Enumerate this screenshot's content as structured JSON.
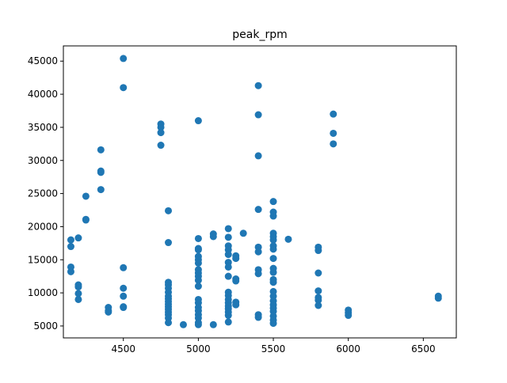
{
  "chart_data": {
    "type": "scatter",
    "title": "peak_rpm",
    "xlabel": "",
    "ylabel": "",
    "xlim": [
      4100,
      6720
    ],
    "ylim": [
      3200,
      47300
    ],
    "x_ticks": [
      4500,
      5000,
      5500,
      6000,
      6500
    ],
    "y_ticks": [
      5000,
      10000,
      15000,
      20000,
      25000,
      30000,
      35000,
      40000,
      45000
    ],
    "grid": false,
    "marker_color": "#1f77b4",
    "points": [
      [
        4150,
        17000
      ],
      [
        4150,
        18000
      ],
      [
        4150,
        13200
      ],
      [
        4150,
        13900
      ],
      [
        4200,
        18300
      ],
      [
        4200,
        11200
      ],
      [
        4200,
        10900
      ],
      [
        4200,
        9900
      ],
      [
        4200,
        9000
      ],
      [
        4250,
        24600
      ],
      [
        4250,
        21000
      ],
      [
        4250,
        21100
      ],
      [
        4350,
        31600
      ],
      [
        4350,
        28200
      ],
      [
        4350,
        28400
      ],
      [
        4350,
        25600
      ],
      [
        4400,
        7800
      ],
      [
        4400,
        7300
      ],
      [
        4400,
        7100
      ],
      [
        4500,
        45400
      ],
      [
        4500,
        41000
      ],
      [
        4500,
        13800
      ],
      [
        4500,
        10700
      ],
      [
        4500,
        9500
      ],
      [
        4500,
        7900
      ],
      [
        4500,
        7800
      ],
      [
        4750,
        35500
      ],
      [
        4750,
        35000
      ],
      [
        4750,
        34200
      ],
      [
        4750,
        32300
      ],
      [
        4800,
        22400
      ],
      [
        4800,
        17600
      ],
      [
        4800,
        11600
      ],
      [
        4800,
        11200
      ],
      [
        4800,
        10700
      ],
      [
        4800,
        10100
      ],
      [
        4800,
        9500
      ],
      [
        4800,
        9100
      ],
      [
        4800,
        8700
      ],
      [
        4800,
        8300
      ],
      [
        4800,
        7900
      ],
      [
        4800,
        7500
      ],
      [
        4800,
        7100
      ],
      [
        4800,
        6700
      ],
      [
        4800,
        6200
      ],
      [
        4800,
        5500
      ],
      [
        4900,
        5200
      ],
      [
        5000,
        36000
      ],
      [
        5000,
        18200
      ],
      [
        5000,
        16700
      ],
      [
        5000,
        16500
      ],
      [
        5000,
        15500
      ],
      [
        5000,
        15000
      ],
      [
        5000,
        14500
      ],
      [
        5000,
        13500
      ],
      [
        5000,
        13000
      ],
      [
        5000,
        12500
      ],
      [
        5000,
        11900
      ],
      [
        5000,
        11000
      ],
      [
        5000,
        9000
      ],
      [
        5000,
        8500
      ],
      [
        5000,
        7800
      ],
      [
        5000,
        7300
      ],
      [
        5000,
        6700
      ],
      [
        5000,
        6200
      ],
      [
        5000,
        5500
      ],
      [
        5000,
        5200
      ],
      [
        5100,
        18900
      ],
      [
        5100,
        18500
      ],
      [
        5100,
        5200
      ],
      [
        5200,
        19700
      ],
      [
        5200,
        18400
      ],
      [
        5200,
        17100
      ],
      [
        5200,
        16500
      ],
      [
        5200,
        15800
      ],
      [
        5200,
        14600
      ],
      [
        5200,
        13900
      ],
      [
        5200,
        12500
      ],
      [
        5200,
        10100
      ],
      [
        5200,
        9600
      ],
      [
        5200,
        9000
      ],
      [
        5200,
        8500
      ],
      [
        5200,
        8000
      ],
      [
        5200,
        7600
      ],
      [
        5200,
        7100
      ],
      [
        5200,
        6600
      ],
      [
        5200,
        5600
      ],
      [
        5250,
        15600
      ],
      [
        5250,
        15200
      ],
      [
        5250,
        12100
      ],
      [
        5250,
        11800
      ],
      [
        5250,
        8600
      ],
      [
        5250,
        8200
      ],
      [
        5300,
        19000
      ],
      [
        5400,
        41300
      ],
      [
        5400,
        36900
      ],
      [
        5400,
        30700
      ],
      [
        5400,
        22600
      ],
      [
        5400,
        16900
      ],
      [
        5400,
        16200
      ],
      [
        5400,
        13500
      ],
      [
        5400,
        12900
      ],
      [
        5400,
        6700
      ],
      [
        5400,
        6300
      ],
      [
        5500,
        23800
      ],
      [
        5500,
        22200
      ],
      [
        5500,
        21600
      ],
      [
        5500,
        19000
      ],
      [
        5500,
        18500
      ],
      [
        5500,
        18000
      ],
      [
        5500,
        17100
      ],
      [
        5500,
        16600
      ],
      [
        5500,
        15200
      ],
      [
        5500,
        13700
      ],
      [
        5500,
        13100
      ],
      [
        5500,
        12000
      ],
      [
        5500,
        11600
      ],
      [
        5500,
        10200
      ],
      [
        5500,
        9500
      ],
      [
        5500,
        8800
      ],
      [
        5500,
        8200
      ],
      [
        5500,
        7700
      ],
      [
        5500,
        7200
      ],
      [
        5500,
        6500
      ],
      [
        5500,
        5900
      ],
      [
        5500,
        5400
      ],
      [
        5600,
        18100
      ],
      [
        5800,
        16900
      ],
      [
        5800,
        16400
      ],
      [
        5800,
        13000
      ],
      [
        5800,
        10300
      ],
      [
        5800,
        9300
      ],
      [
        5800,
        8900
      ],
      [
        5800,
        8100
      ],
      [
        5900,
        37000
      ],
      [
        5900,
        34100
      ],
      [
        5900,
        32500
      ],
      [
        6000,
        7400
      ],
      [
        6000,
        7000
      ],
      [
        6000,
        6600
      ],
      [
        6600,
        9500
      ],
      [
        6600,
        9200
      ]
    ]
  }
}
